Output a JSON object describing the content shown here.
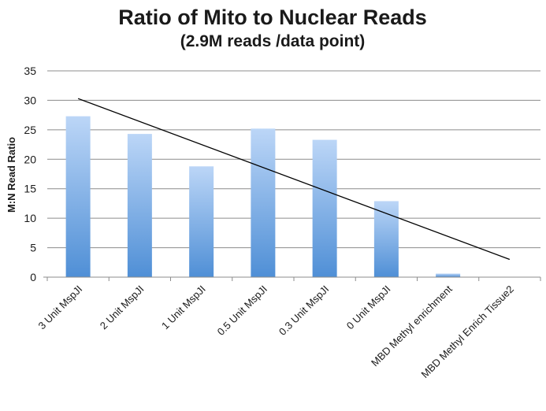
{
  "chart_data": {
    "type": "bar",
    "title": "Ratio of Mito to Nuclear Reads",
    "subtitle": "(2.9M reads /data point)",
    "xlabel": "",
    "ylabel": "M:N Read Ratio",
    "ylim": [
      0,
      35
    ],
    "yticks": [
      0,
      5,
      10,
      15,
      20,
      25,
      30,
      35
    ],
    "grid": true,
    "legend": "none",
    "categories": [
      "3 Unit MspJI",
      "2 Unit MspJI",
      "1 Unit MspJI",
      "0.5 Unit MspJI",
      "0.3 Unit MspJI",
      "0 Unit MspJI",
      "MBD Methyl enrichment",
      "MBD Methyl Enrich Tissue2"
    ],
    "values": [
      27.3,
      24.3,
      18.8,
      25.2,
      23.3,
      12.9,
      0.6,
      0.05
    ],
    "trendline": {
      "type": "linear",
      "start": [
        1,
        30.3
      ],
      "end": [
        8,
        3.0
      ]
    },
    "colors": {
      "bar_top": "#bcd6f7",
      "bar_bottom": "#4f8fd6",
      "grid": "#8c8c8c",
      "axis": "#8c8c8c",
      "trendline": "#000000"
    }
  }
}
